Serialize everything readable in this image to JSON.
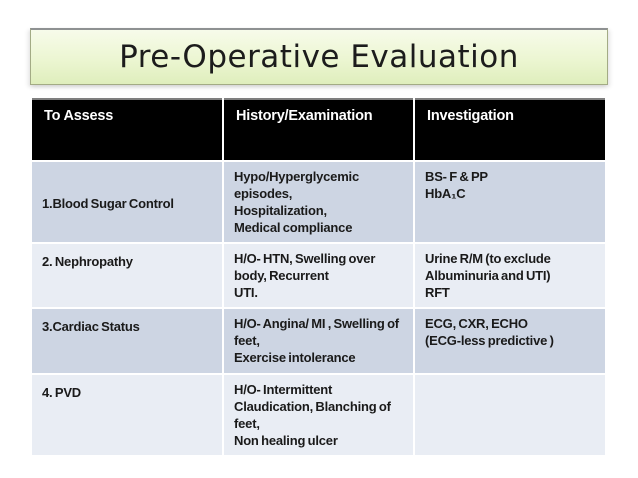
{
  "slide": {
    "title": "Pre-Operative Evaluation"
  },
  "table": {
    "headers": [
      "To Assess",
      "History/Examination",
      "Investigation"
    ],
    "rows": [
      {
        "assess": "1.Blood Sugar Control",
        "history": "Hypo/Hyperglycemic\nepisodes,\nHospitalization,\nMedical compliance",
        "investigation": "BS- F & PP\nHbA₁C"
      },
      {
        "assess": "2. Nephropathy",
        "history": "H/O- HTN, Swelling over\nbody, Recurrent\nUTI.",
        "investigation": "Urine R/M (to exclude\nAlbuminuria and UTI)\nRFT"
      },
      {
        "assess": "3.Cardiac Status",
        "history": "H/O- Angina/ MI , Swelling of\nfeet,\nExercise intolerance",
        "investigation": "ECG, CXR, ECHO\n(ECG-less predictive )"
      },
      {
        "assess": "4. PVD",
        "history": "H/O- Intermittent\nClaudication, Blanching of\nfeet,\nNon healing ulcer",
        "investigation": ""
      }
    ]
  },
  "colors": {
    "header_bg": "#000000",
    "header_text": "#ffffff",
    "row_band_dark": "#cdd5e3",
    "row_band_light": "#e9edf4",
    "body_text": "#1a1a1a",
    "title_text": "#1c1c1c",
    "title_bg_top": "#f7fbea",
    "title_bg_bottom": "#dfeebc",
    "title_border": "#a3ab85"
  }
}
